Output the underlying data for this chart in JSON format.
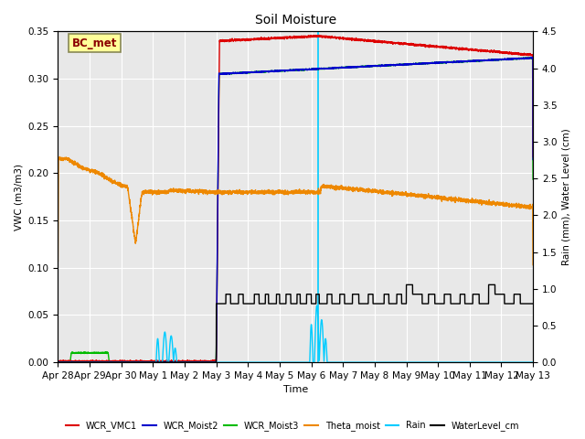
{
  "title": "Soil Moisture",
  "xlabel": "Time",
  "ylabel_left": "VWC (m3/m3)",
  "ylabel_right": "Rain (mm), Water Level (cm)",
  "ylim_left": [
    0,
    0.35
  ],
  "ylim_right": [
    0,
    4.5
  ],
  "bg_color": "#e8e8e8",
  "annotation_box": "BC_met",
  "annotation_color": "#8b0000",
  "annotation_bg": "#ffff99",
  "tick_labels": [
    "Apr 28",
    "Apr 29",
    "Apr 30",
    "May 1",
    "May 2",
    "May 3",
    "May 4",
    "May 5",
    "May 6",
    "May 7",
    "May 8",
    "May 9",
    "May 10",
    "May 11",
    "May 12",
    "May 13"
  ],
  "vline_color": "#00ccff",
  "series_colors": {
    "WCR_VMC1": "#dd0000",
    "WCR_Moist2": "#0000cc",
    "WCR_Moist3": "#00bb00",
    "Theta_moist": "#ee8800",
    "Rain": "#00ccff",
    "WaterLevel_cm": "#000000"
  }
}
